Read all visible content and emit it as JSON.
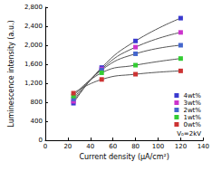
{
  "chart_data": {
    "type": "line",
    "x_label": "Current density (μA/cm²)",
    "y_label": "Luminescence intensity (a.u.)",
    "annotation": "V₀=2kV",
    "xlim": [
      0,
      140
    ],
    "xticks": [
      0,
      20,
      40,
      60,
      80,
      100,
      120,
      140
    ],
    "ylim": [
      0,
      2800
    ],
    "yticks": [
      0,
      400,
      800,
      1200,
      1600,
      2000,
      2400,
      2800
    ],
    "grid": false,
    "legend": "lower right",
    "marker": "square",
    "series": [
      {
        "name": "4wt%",
        "color": "#3a3acf",
        "x": [
          25,
          50,
          80,
          120
        ],
        "values": [
          780,
          1530,
          2090,
          2570
        ]
      },
      {
        "name": "3wt%",
        "color": "#cc33cc",
        "x": [
          25,
          50,
          80,
          120
        ],
        "values": [
          820,
          1500,
          1960,
          2270
        ]
      },
      {
        "name": "2wt%",
        "color": "#4466cc",
        "x": [
          25,
          50,
          80,
          120
        ],
        "values": [
          870,
          1480,
          1820,
          2000
        ]
      },
      {
        "name": "1wt%",
        "color": "#33cc33",
        "x": [
          25,
          50,
          80,
          120
        ],
        "values": [
          930,
          1420,
          1580,
          1720
        ]
      },
      {
        "name": "0wt%",
        "color": "#cc3333",
        "x": [
          25,
          50,
          80,
          120
        ],
        "values": [
          990,
          1280,
          1390,
          1460
        ]
      }
    ]
  }
}
